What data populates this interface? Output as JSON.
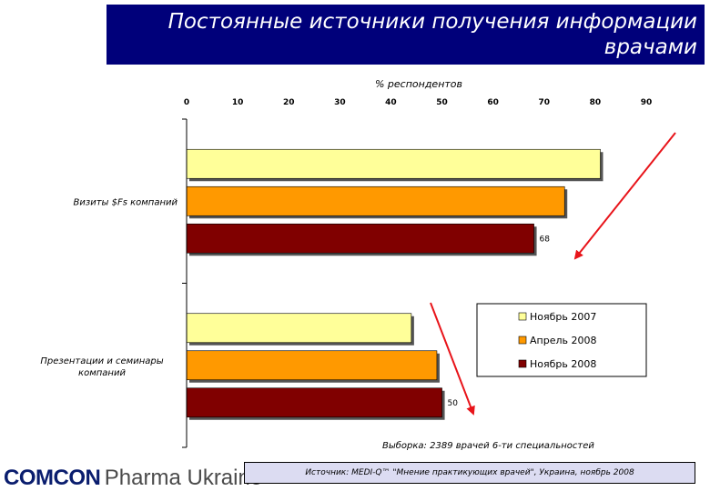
{
  "title": {
    "line1": "Постоянные источники получения информации",
    "line2": "врачами"
  },
  "chart_data": {
    "type": "bar",
    "orientation": "horizontal",
    "xlabel": "% респондентов",
    "xlim": [
      0,
      90
    ],
    "x_ticks": [
      "0",
      "10",
      "20",
      "30",
      "40",
      "50",
      "60",
      "70",
      "80",
      "90"
    ],
    "categories": [
      "Визиты $Fs компаний",
      "Презентации и семинары компаний"
    ],
    "series": [
      {
        "name": "Ноябрь 2007",
        "color": "#ffff99",
        "values": [
          81,
          44
        ]
      },
      {
        "name": "Апрель 2008",
        "color": "#ff9900",
        "values": [
          74,
          49
        ]
      },
      {
        "name": "Ноябрь 2008",
        "color": "#800000",
        "values": [
          68,
          50
        ]
      }
    ],
    "data_labels": [
      "68",
      "50"
    ],
    "legend_position": "lower-right",
    "grid": false
  },
  "annotations": {
    "sample": "Выборка: 2389 врачей 6-ти специальностей"
  },
  "footer": {
    "logo_comcon": "COMCON",
    "logo_pharma": "Pharma Ukraine",
    "source": "Источник: MEDI-Q™ \"Мнение практикующих врачей\", Украина, ноябрь 2008"
  },
  "colors": {
    "title_bg": "#00007a",
    "arrow": "#e8141a",
    "source_bg": "#dcdcf2"
  }
}
